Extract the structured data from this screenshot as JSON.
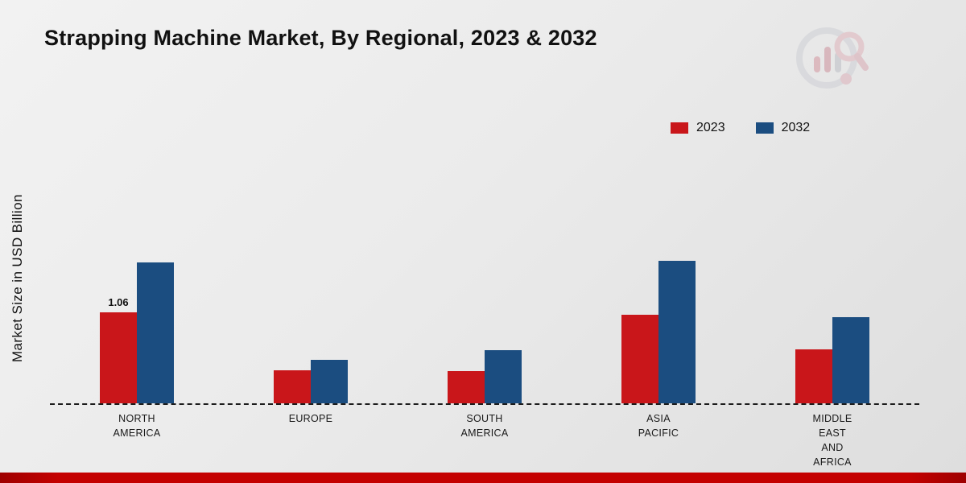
{
  "page": {
    "title": "Strapping Machine Market, By Regional, 2023 & 2032",
    "y_axis_label": "Market Size in USD Billion"
  },
  "legend": [
    {
      "label": "2023",
      "color": "#c9161a"
    },
    {
      "label": "2032",
      "color": "#1b4d80"
    }
  ],
  "chart_data": {
    "type": "bar",
    "title": "Strapping Machine Market, By Regional, 2023 & 2032",
    "ylabel": "Market Size in USD Billion",
    "xlabel": "",
    "ylim": [
      0,
      1.9
    ],
    "grid": false,
    "legend_position": "top-right",
    "baseline_style": "dashed",
    "categories": [
      "NORTH\nAMERICA",
      "EUROPE",
      "SOUTH\nAMERICA",
      "ASIA\nPACIFIC",
      "MIDDLE\nEAST\nAND\nAFRICA"
    ],
    "series": [
      {
        "name": "2023",
        "color": "#c9161a",
        "values": [
          1.06,
          0.38,
          0.37,
          1.03,
          0.63
        ]
      },
      {
        "name": "2032",
        "color": "#1b4d80",
        "values": [
          1.64,
          0.5,
          0.62,
          1.65,
          1.0
        ]
      }
    ],
    "value_labels": [
      {
        "series": "2023",
        "category_index": 0,
        "text": "1.06"
      }
    ]
  },
  "footer": {
    "accent_color": "#c40000"
  },
  "icons": {
    "logo": "market-research-chart-magnifier-logo"
  }
}
